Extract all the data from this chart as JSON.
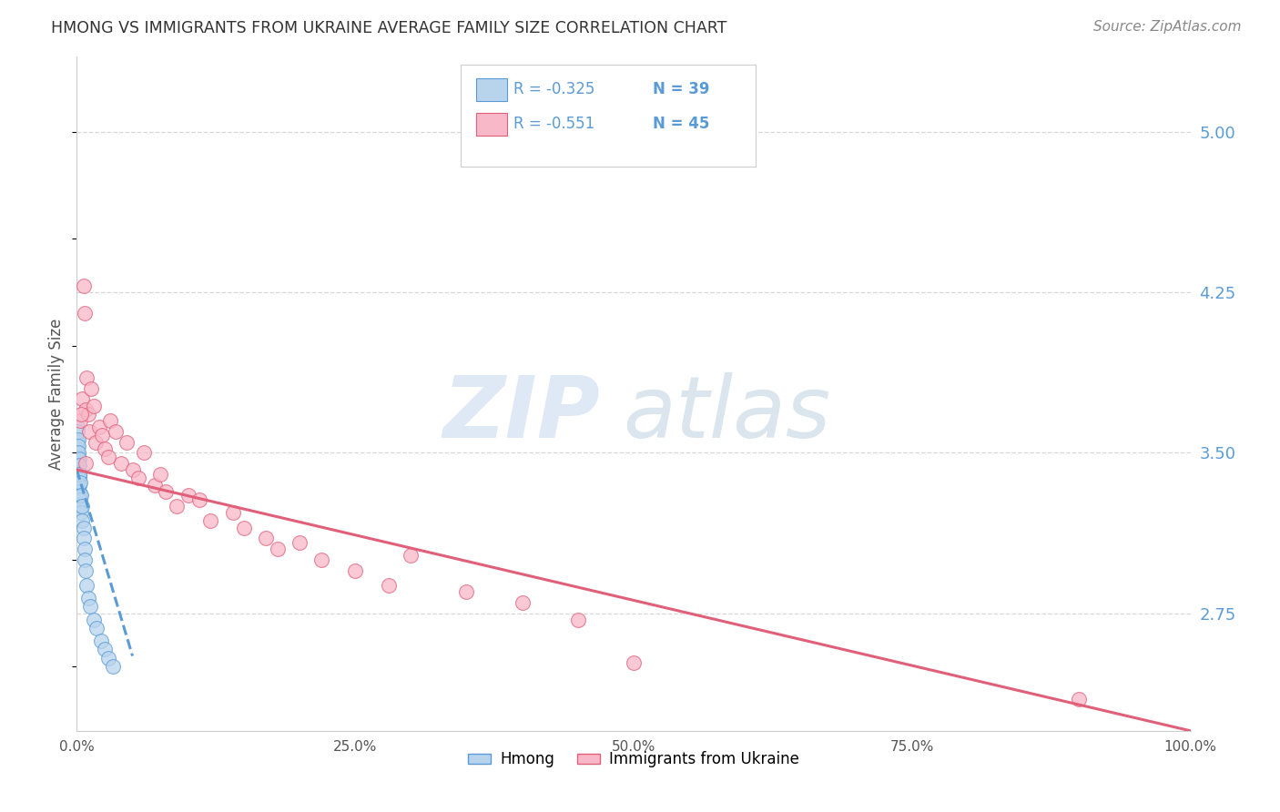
{
  "title": "HMONG VS IMMIGRANTS FROM UKRAINE AVERAGE FAMILY SIZE CORRELATION CHART",
  "source": "Source: ZipAtlas.com",
  "ylabel": "Average Family Size",
  "r_values": [
    -0.325,
    -0.551
  ],
  "n_values": [
    39,
    45
  ],
  "colors_scatter": [
    "#b8d4ed",
    "#f9b8c8"
  ],
  "colors_line": [
    "#5b9bd5",
    "#e0607a"
  ],
  "xmin": 0.0,
  "xmax": 100.0,
  "ylim": [
    2.2,
    5.35
  ],
  "yticks": [
    2.75,
    3.5,
    4.25,
    5.0
  ],
  "background_color": "#ffffff",
  "grid_color": "#d8d8d8",
  "watermark_zip": "ZIP",
  "watermark_atlas": "atlas",
  "hmong_x": [
    0.05,
    0.05,
    0.08,
    0.08,
    0.1,
    0.1,
    0.12,
    0.12,
    0.15,
    0.15,
    0.18,
    0.18,
    0.2,
    0.2,
    0.22,
    0.25,
    0.25,
    0.28,
    0.3,
    0.3,
    0.35,
    0.4,
    0.4,
    0.5,
    0.5,
    0.6,
    0.6,
    0.7,
    0.7,
    0.8,
    0.9,
    1.0,
    1.2,
    1.5,
    1.8,
    2.2,
    2.5,
    2.8,
    3.2
  ],
  "hmong_y": [
    3.55,
    3.62,
    3.52,
    3.6,
    3.48,
    3.56,
    3.45,
    3.53,
    3.42,
    3.5,
    3.4,
    3.47,
    3.38,
    3.44,
    3.35,
    3.32,
    3.4,
    3.3,
    3.28,
    3.36,
    3.25,
    3.22,
    3.3,
    3.18,
    3.25,
    3.15,
    3.1,
    3.05,
    3.0,
    2.95,
    2.88,
    2.82,
    2.78,
    2.72,
    2.68,
    2.62,
    2.58,
    2.54,
    2.5
  ],
  "ukraine_x": [
    0.3,
    0.5,
    0.6,
    0.7,
    0.8,
    0.9,
    1.0,
    1.1,
    1.3,
    1.5,
    1.7,
    2.0,
    2.3,
    2.5,
    2.8,
    3.0,
    3.5,
    4.0,
    4.5,
    5.0,
    5.5,
    6.0,
    7.0,
    7.5,
    8.0,
    9.0,
    10.0,
    11.0,
    12.0,
    14.0,
    15.0,
    17.0,
    18.0,
    20.0,
    22.0,
    25.0,
    28.0,
    30.0,
    35.0,
    40.0,
    45.0,
    50.0,
    90.0,
    0.4,
    0.8
  ],
  "ukraine_y": [
    3.65,
    3.75,
    4.28,
    4.15,
    3.7,
    3.85,
    3.68,
    3.6,
    3.8,
    3.72,
    3.55,
    3.62,
    3.58,
    3.52,
    3.48,
    3.65,
    3.6,
    3.45,
    3.55,
    3.42,
    3.38,
    3.5,
    3.35,
    3.4,
    3.32,
    3.25,
    3.3,
    3.28,
    3.18,
    3.22,
    3.15,
    3.1,
    3.05,
    3.08,
    3.0,
    2.95,
    2.88,
    3.02,
    2.85,
    2.8,
    2.72,
    2.52,
    2.35,
    3.68,
    3.45
  ],
  "hmong_trendline_x": [
    0.0,
    5.0
  ],
  "hmong_trendline_y": [
    3.42,
    2.55
  ],
  "ukraine_trendline_x": [
    0.0,
    100.0
  ],
  "ukraine_trendline_y": [
    3.42,
    2.2
  ]
}
